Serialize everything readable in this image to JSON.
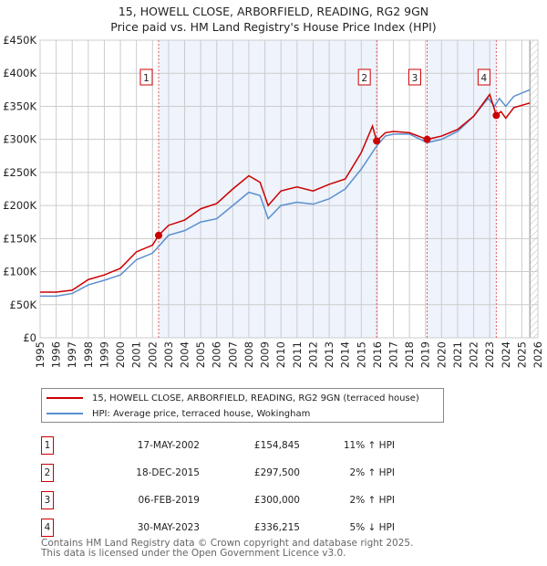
{
  "title": "15, HOWELL CLOSE, ARBORFIELD, READING, RG2 9GN",
  "subtitle": "Price paid vs. HM Land Registry's House Price Index (HPI)",
  "chart_data": {
    "type": "line",
    "title": "15, HOWELL CLOSE, ARBORFIELD, READING, RG2 9GN",
    "subtitle": "Price paid vs. HM Land Registry's House Price Index (HPI)",
    "xlim": [
      1995,
      2026
    ],
    "ylim": [
      0,
      450000
    ],
    "x_ticks": [
      "1995",
      "1996",
      "1997",
      "1998",
      "1999",
      "2000",
      "2001",
      "2002",
      "2003",
      "2004",
      "2005",
      "2006",
      "2007",
      "2008",
      "2009",
      "2010",
      "2011",
      "2012",
      "2013",
      "2014",
      "2015",
      "2016",
      "2017",
      "2018",
      "2019",
      "2020",
      "2021",
      "2022",
      "2023",
      "2024",
      "2025",
      "2026"
    ],
    "y_ticks": [
      {
        "v": 0,
        "label": "£0"
      },
      {
        "v": 50000,
        "label": "£50K"
      },
      {
        "v": 100000,
        "label": "£100K"
      },
      {
        "v": 150000,
        "label": "£150K"
      },
      {
        "v": 200000,
        "label": "£200K"
      },
      {
        "v": 250000,
        "label": "£250K"
      },
      {
        "v": 300000,
        "label": "£300K"
      },
      {
        "v": 350000,
        "label": "£350K"
      },
      {
        "v": 400000,
        "label": "£400K"
      },
      {
        "v": 450000,
        "label": "£450K"
      }
    ],
    "grid": true,
    "series": [
      {
        "name": "15, HOWELL CLOSE, ARBORFIELD, READING, RG2 9GN (terraced house)",
        "color": "#cc0000",
        "x": [
          1995,
          1996,
          1997,
          1998,
          1999,
          2000,
          2001,
          2002,
          2002.38,
          2003,
          2004,
          2005,
          2006,
          2007,
          2008,
          2008.7,
          2009.2,
          2010,
          2011,
          2012,
          2013,
          2014,
          2015,
          2015.7,
          2015.96,
          2016.5,
          2017,
          2018,
          2019.1,
          2020,
          2021,
          2022,
          2023,
          2023.41,
          2023.7,
          2024,
          2024.5,
          2025.5
        ],
        "y": [
          69000,
          69000,
          72000,
          88000,
          95000,
          105000,
          130000,
          140000,
          154845,
          170000,
          178000,
          195000,
          203000,
          225000,
          245000,
          235000,
          200000,
          222000,
          228000,
          222000,
          232000,
          240000,
          280000,
          320000,
          297500,
          310000,
          312000,
          310000,
          300000,
          305000,
          315000,
          335000,
          368000,
          336215,
          342000,
          332000,
          348000,
          355000
        ]
      },
      {
        "name": "HPI: Average price, terraced house, Wokingham",
        "color": "#5b8fd0",
        "x": [
          1995,
          1996,
          1997,
          1998,
          1999,
          2000,
          2001,
          2002,
          2002.38,
          2003,
          2004,
          2005,
          2006,
          2007,
          2008,
          2008.7,
          2009.2,
          2010,
          2011,
          2012,
          2013,
          2014,
          2015,
          2015.96,
          2016.5,
          2017,
          2018,
          2019.1,
          2020,
          2021,
          2022,
          2022.9,
          2023.3,
          2023.6,
          2024,
          2024.5,
          2025.5
        ],
        "y": [
          63000,
          63000,
          67000,
          80000,
          87000,
          95000,
          118000,
          128000,
          138000,
          155000,
          162000,
          175000,
          180000,
          200000,
          220000,
          215000,
          180000,
          200000,
          205000,
          202000,
          210000,
          225000,
          255000,
          290000,
          305000,
          308000,
          308000,
          295000,
          300000,
          312000,
          335000,
          362000,
          350000,
          362000,
          350000,
          365000,
          375000
        ]
      }
    ],
    "sales": [
      {
        "n": "1",
        "date": "17-MAY-2002",
        "x": 2002.38,
        "price": "£154,845",
        "value": 154845,
        "hpi": "11% ↑ HPI"
      },
      {
        "n": "2",
        "date": "18-DEC-2015",
        "x": 2015.96,
        "price": "£297,500",
        "value": 297500,
        "hpi": "2% ↑ HPI"
      },
      {
        "n": "3",
        "date": "06-FEB-2019",
        "x": 2019.1,
        "price": "£300,000",
        "value": 300000,
        "hpi": "2% ↑ HPI"
      },
      {
        "n": "4",
        "date": "30-MAY-2023",
        "x": 2023.41,
        "price": "£336,215",
        "value": 336215,
        "hpi": "5% ↓ HPI"
      }
    ],
    "shaded_ranges": [
      [
        2002.38,
        2015.96
      ],
      [
        2019.1,
        2023.41
      ]
    ],
    "forecast_from": 2025.5,
    "legend": "bottom"
  },
  "legend": {
    "red": "15, HOWELL CLOSE, ARBORFIELD, READING, RG2 9GN (terraced house)",
    "blue": "HPI: Average price, terraced house, Wokingham"
  },
  "footer": {
    "line1": "Contains HM Land Registry data © Crown copyright and database right 2025.",
    "line2": "This data is licensed under the Open Government Licence v3.0."
  }
}
